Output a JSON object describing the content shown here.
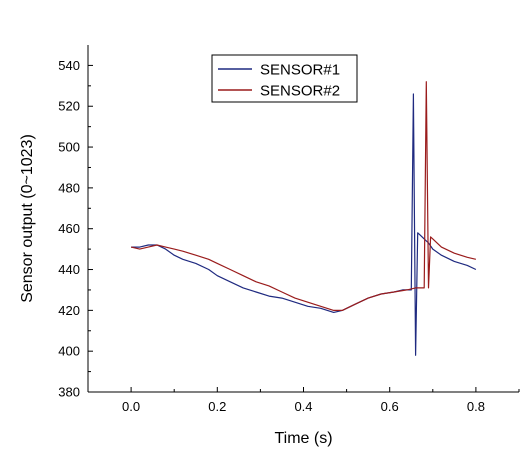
{
  "chart_data": {
    "type": "line",
    "title": "",
    "xlabel": "Time (s)",
    "ylabel": "Sensor output (0~1023)",
    "xlim": [
      -0.1,
      0.9
    ],
    "ylim": [
      380,
      550
    ],
    "xticks": [
      0.0,
      0.2,
      0.4,
      0.6,
      0.8
    ],
    "xtick_labels": [
      "0.0",
      "0.2",
      "0.4",
      "0.6",
      "0.8"
    ],
    "yticks": [
      380,
      400,
      420,
      440,
      460,
      480,
      500,
      520,
      540
    ],
    "ytick_labels": [
      "380",
      "400",
      "420",
      "440",
      "460",
      "480",
      "500",
      "520",
      "540"
    ],
    "grid": false,
    "legend_position": "top-center",
    "series": [
      {
        "name": "SENSOR#1",
        "color": "#1f2a80",
        "x": [
          0.0,
          0.02,
          0.04,
          0.06,
          0.08,
          0.1,
          0.12,
          0.15,
          0.18,
          0.2,
          0.23,
          0.26,
          0.29,
          0.32,
          0.35,
          0.38,
          0.41,
          0.44,
          0.47,
          0.49,
          0.52,
          0.55,
          0.58,
          0.61,
          0.63,
          0.65,
          0.655,
          0.66,
          0.665,
          0.67,
          0.68,
          0.69,
          0.7,
          0.72,
          0.75,
          0.78,
          0.8
        ],
        "y": [
          451,
          451,
          452,
          452,
          450,
          447,
          445,
          443,
          440,
          437,
          434,
          431,
          429,
          427,
          426,
          424,
          422,
          421,
          419,
          420,
          423,
          426,
          428,
          429,
          430,
          430,
          526,
          398,
          458,
          457,
          455,
          453,
          450,
          447,
          444,
          442,
          440
        ]
      },
      {
        "name": "SENSOR#2",
        "color": "#9a1c1c",
        "x": [
          0.0,
          0.02,
          0.04,
          0.06,
          0.08,
          0.1,
          0.12,
          0.15,
          0.18,
          0.2,
          0.23,
          0.26,
          0.29,
          0.32,
          0.35,
          0.38,
          0.41,
          0.44,
          0.47,
          0.49,
          0.52,
          0.55,
          0.58,
          0.61,
          0.64,
          0.66,
          0.68,
          0.685,
          0.69,
          0.695,
          0.7,
          0.72,
          0.75,
          0.78,
          0.8
        ],
        "y": [
          451,
          450,
          451,
          452,
          451,
          450,
          449,
          447,
          445,
          443,
          440,
          437,
          434,
          432,
          429,
          426,
          424,
          422,
          420,
          420,
          423,
          426,
          428,
          429,
          430,
          431,
          431,
          532,
          431,
          456,
          455,
          451,
          448,
          446,
          445
        ]
      }
    ]
  }
}
